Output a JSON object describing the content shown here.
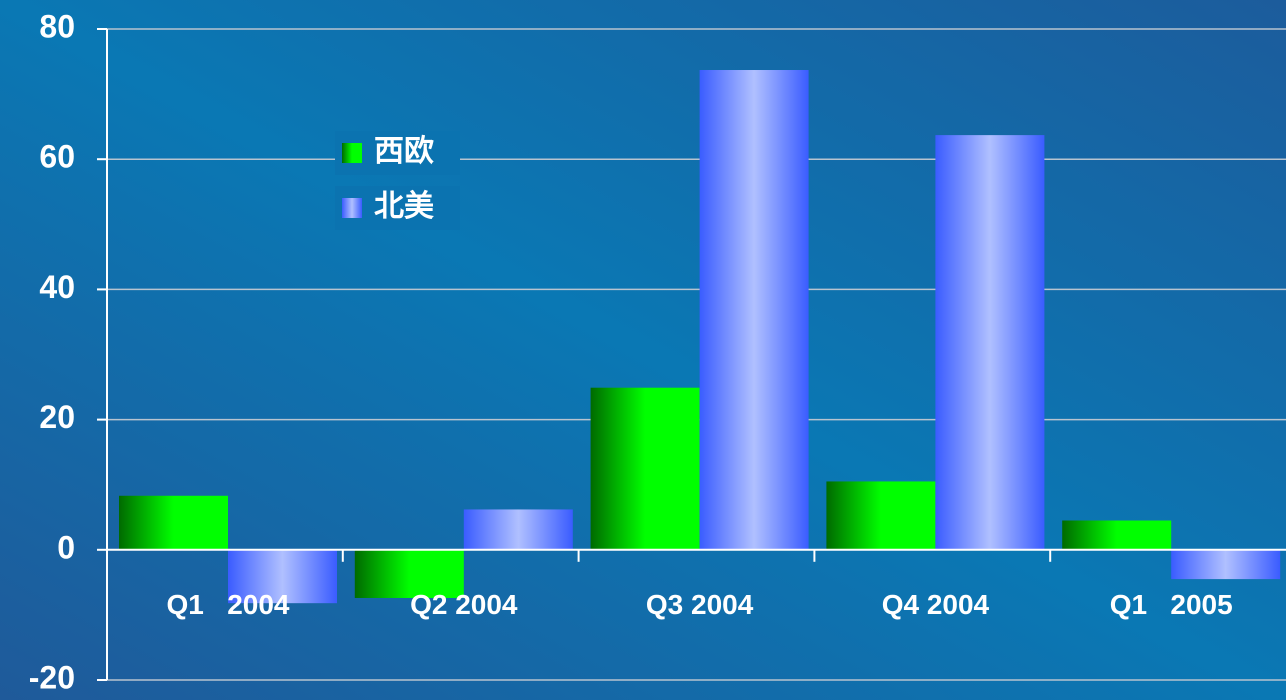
{
  "chart_data": {
    "type": "bar",
    "categories": [
      "Q1   2004",
      "Q2 2004",
      "Q3 2004",
      "Q4 2004",
      "Q1   2005"
    ],
    "series": [
      {
        "name": "西欧",
        "color": "#00ff00",
        "values": [
          8.3,
          -7.4,
          24.9,
          10.5,
          4.5
        ]
      },
      {
        "name": "北美",
        "color": "#b0c0ff",
        "values": [
          -8.2,
          6.2,
          73.7,
          63.7,
          -4.5
        ]
      }
    ],
    "ylim": [
      -20,
      80
    ],
    "yticks": [
      -20,
      0,
      20,
      40,
      60,
      80
    ],
    "grid": true
  }
}
